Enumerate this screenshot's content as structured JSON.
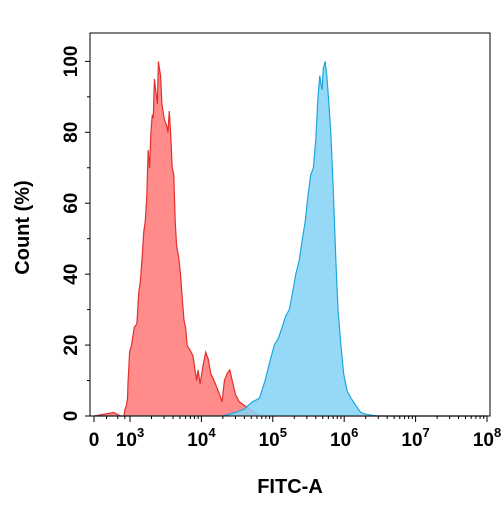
{
  "chart_data": {
    "type": "area",
    "title": "",
    "xlabel": "FITC-A",
    "ylabel": "Count (%)",
    "xscale": "log (biexponential, 0 shown at left)",
    "xlim": [
      0,
      100000000
    ],
    "ylim": [
      0,
      108
    ],
    "x_tick_labels": [
      {
        "base": "0",
        "exp": "",
        "value": 0
      },
      {
        "base": "10",
        "exp": "3",
        "value": 1000
      },
      {
        "base": "10",
        "exp": "4",
        "value": 10000
      },
      {
        "base": "10",
        "exp": "5",
        "value": 100000
      },
      {
        "base": "10",
        "exp": "6",
        "value": 1000000
      },
      {
        "base": "10",
        "exp": "7",
        "value": 10000000
      },
      {
        "base": "10",
        "exp": "8",
        "value": 100000000
      }
    ],
    "y_ticks": [
      "0",
      "20",
      "40",
      "60",
      "80",
      "100"
    ],
    "y_tick_values": [
      0,
      20,
      40,
      60,
      80,
      100
    ],
    "grid": false,
    "legend": "none",
    "series": [
      {
        "color": "#ff7b7b",
        "stroke": "#e0302e",
        "points": [
          [
            0,
            0
          ],
          [
            200,
            1
          ],
          [
            400,
            0
          ],
          [
            550,
            0
          ],
          [
            620,
            2
          ],
          [
            700,
            3
          ],
          [
            780,
            5
          ],
          [
            830,
            10
          ],
          [
            900,
            14
          ],
          [
            960,
            18
          ],
          [
            1050,
            20
          ],
          [
            1150,
            25
          ],
          [
            1250,
            26
          ],
          [
            1330,
            35
          ],
          [
            1400,
            38
          ],
          [
            1480,
            45
          ],
          [
            1560,
            52
          ],
          [
            1640,
            55
          ],
          [
            1720,
            62
          ],
          [
            1800,
            75
          ],
          [
            1880,
            70
          ],
          [
            1960,
            80
          ],
          [
            2050,
            85
          ],
          [
            2120,
            84
          ],
          [
            2200,
            95
          ],
          [
            2280,
            92
          ],
          [
            2350,
            90
          ],
          [
            2420,
            88
          ],
          [
            2500,
            100
          ],
          [
            2580,
            98
          ],
          [
            2680,
            96
          ],
          [
            2800,
            88
          ],
          [
            2900,
            86
          ],
          [
            3000,
            84
          ],
          [
            3100,
            83
          ],
          [
            3250,
            82
          ],
          [
            3400,
            80
          ],
          [
            3550,
            86
          ],
          [
            3700,
            80
          ],
          [
            3900,
            70
          ],
          [
            4100,
            68
          ],
          [
            4300,
            55
          ],
          [
            4500,
            48
          ],
          [
            4800,
            45
          ],
          [
            5100,
            40
          ],
          [
            5400,
            33
          ],
          [
            5700,
            27
          ],
          [
            6000,
            25
          ],
          [
            6300,
            20
          ],
          [
            6700,
            19
          ],
          [
            7200,
            18
          ],
          [
            7600,
            17
          ],
          [
            8000,
            14
          ],
          [
            8600,
            10
          ],
          [
            9000,
            13
          ],
          [
            9600,
            9
          ],
          [
            10500,
            14
          ],
          [
            11500,
            18
          ],
          [
            12500,
            16
          ],
          [
            13500,
            12
          ],
          [
            15000,
            10
          ],
          [
            16500,
            8
          ],
          [
            18000,
            6
          ],
          [
            19500,
            4
          ],
          [
            21000,
            10
          ],
          [
            23000,
            12
          ],
          [
            25000,
            13
          ],
          [
            27000,
            10
          ],
          [
            30000,
            6
          ],
          [
            34000,
            4
          ],
          [
            40000,
            3
          ],
          [
            47000,
            2
          ],
          [
            55000,
            1
          ],
          [
            65000,
            0
          ],
          [
            100000000,
            0
          ]
        ]
      },
      {
        "color": "#87d4f5",
        "stroke": "#1ea7dc",
        "points": [
          [
            0,
            0
          ],
          [
            20000,
            0
          ],
          [
            30000,
            1
          ],
          [
            40000,
            2
          ],
          [
            52000,
            4
          ],
          [
            65000,
            5
          ],
          [
            78000,
            10
          ],
          [
            90000,
            15
          ],
          [
            105000,
            20
          ],
          [
            120000,
            22
          ],
          [
            135000,
            25
          ],
          [
            150000,
            28
          ],
          [
            170000,
            30
          ],
          [
            190000,
            35
          ],
          [
            210000,
            40
          ],
          [
            235000,
            44
          ],
          [
            260000,
            50
          ],
          [
            285000,
            55
          ],
          [
            310000,
            62
          ],
          [
            340000,
            68
          ],
          [
            370000,
            70
          ],
          [
            400000,
            78
          ],
          [
            430000,
            90
          ],
          [
            455000,
            96
          ],
          [
            470000,
            94
          ],
          [
            490000,
            92
          ],
          [
            510000,
            98
          ],
          [
            540000,
            100
          ],
          [
            570000,
            96
          ],
          [
            600000,
            90
          ],
          [
            650000,
            80
          ],
          [
            700000,
            65
          ],
          [
            760000,
            45
          ],
          [
            820000,
            30
          ],
          [
            900000,
            20
          ],
          [
            980000,
            12
          ],
          [
            1100000,
            7
          ],
          [
            1250000,
            5
          ],
          [
            1450000,
            3
          ],
          [
            1700000,
            1
          ],
          [
            2000000,
            0.5
          ],
          [
            2500000,
            0.2
          ],
          [
            3000000,
            0
          ],
          [
            100000000,
            0
          ]
        ]
      }
    ]
  }
}
